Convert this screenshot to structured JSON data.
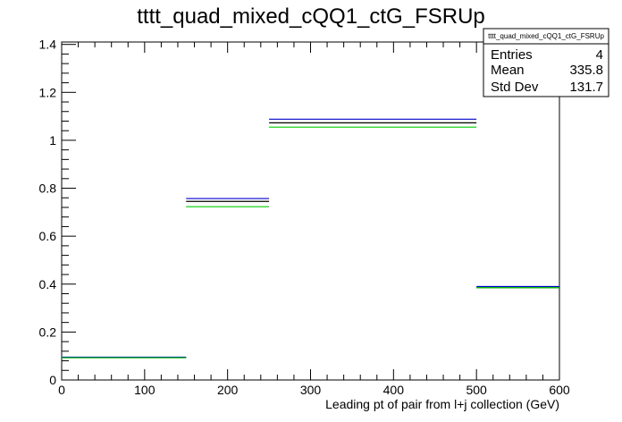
{
  "chart_data": {
    "type": "histogram",
    "title": "tttt_quad_mixed_cQQ1_ctG_FSRUp",
    "xlabel": "Leading pt of pair from l+j collection (GeV)",
    "ylabel": "",
    "xlim": [
      0,
      600
    ],
    "ylim": [
      0,
      1.41
    ],
    "x_ticks": [
      0,
      100,
      200,
      300,
      400,
      500,
      600
    ],
    "y_ticks": [
      0,
      0.2,
      0.4,
      0.6,
      0.8,
      1,
      1.2,
      1.4
    ],
    "x_tick_labels": [
      "0",
      "100",
      "200",
      "300",
      "400",
      "500",
      "600"
    ],
    "y_tick_labels": [
      "0",
      "0.2",
      "0.4",
      "0.6",
      "0.8",
      "1",
      "1.2",
      "1.4"
    ],
    "bins": [
      {
        "x_low": 0,
        "x_high": 150
      },
      {
        "x_low": 150,
        "x_high": 250
      },
      {
        "x_low": 250,
        "x_high": 500
      },
      {
        "x_low": 500,
        "x_high": 600
      }
    ],
    "series": [
      {
        "color": "#0000cc",
        "values": [
          0.095,
          0.757,
          1.088,
          0.39
        ]
      },
      {
        "color": "#000000",
        "values": [
          0.093,
          0.745,
          1.073,
          0.385
        ]
      },
      {
        "color": "#00cc00",
        "values": [
          0.093,
          0.723,
          1.055,
          0.385
        ]
      }
    ],
    "grid": false
  },
  "stats": {
    "title": "tttt_quad_mixed_cQQ1_ctG_FSRUp",
    "rows": [
      {
        "label": "Entries",
        "value": "4"
      },
      {
        "label": "Mean",
        "value": "335.8"
      },
      {
        "label": "Std Dev",
        "value": "131.7"
      }
    ]
  }
}
